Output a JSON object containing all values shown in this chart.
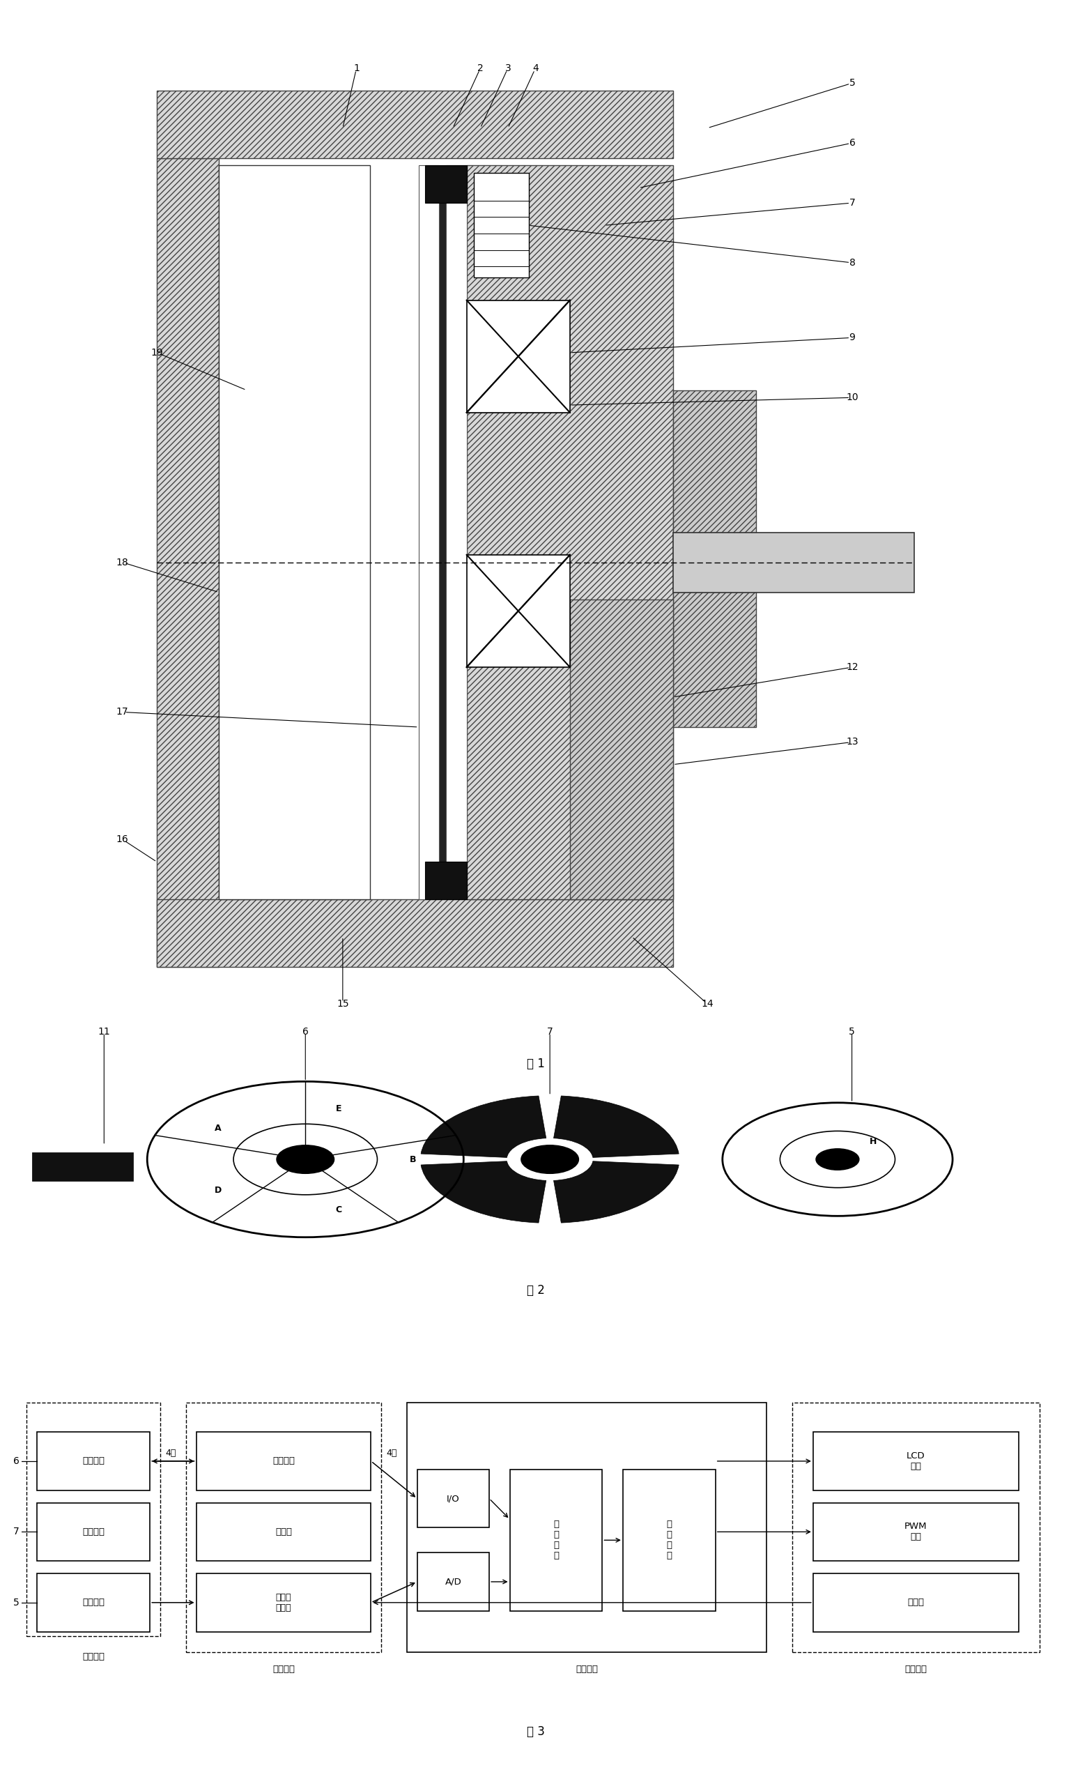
{
  "bg_color": "#ffffff",
  "fig_width": 15.37,
  "fig_height": 25.39,
  "fig1_caption": "图 1",
  "fig2_caption": "图 2",
  "fig3_caption": "图 3"
}
